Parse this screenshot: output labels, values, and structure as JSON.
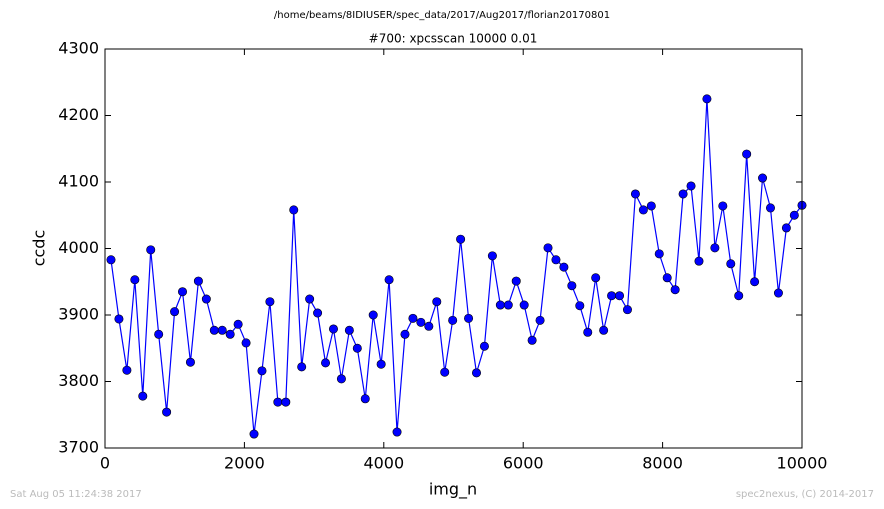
{
  "chart_data": {
    "type": "line",
    "suptitle": "/home/beams/8IDIUSER/spec_data/2017/Aug2017/florian20170801",
    "title": "#700: xpcsscan 10000 0.01",
    "x_label": "img_n",
    "y_label": "ccdc",
    "footer_left": "Sat Aug 05 11:24:38 2017",
    "footer_right": "spec2nexus, (C) 2014-2017",
    "x": [
      86,
      200,
      314,
      428,
      542,
      656,
      770,
      884,
      998,
      1112,
      1226,
      1340,
      1454,
      1568,
      1682,
      1796,
      1910,
      2024,
      2138,
      2252,
      2366,
      2480,
      2594,
      2708,
      2822,
      2936,
      3050,
      3164,
      3278,
      3392,
      3506,
      3620,
      3734,
      3848,
      3962,
      4076,
      4190,
      4304,
      4418,
      4532,
      4646,
      4760,
      4874,
      4988,
      5102,
      5216,
      5330,
      5444,
      5558,
      5672,
      5786,
      5900,
      6014,
      6128,
      6242,
      6356,
      6470,
      6584,
      6698,
      6812,
      6926,
      7040,
      7154,
      7268,
      7382,
      7496,
      7610,
      7724,
      7838,
      7952,
      8066,
      8180,
      8294,
      8408,
      8522,
      8636,
      8750,
      8864,
      8978,
      9092,
      9206,
      9320,
      9434,
      9548,
      9662,
      9776,
      9890,
      10000
    ],
    "series": [
      {
        "name": "ccdc",
        "color": "#0000ff",
        "values": [
          3983,
          3894,
          3817,
          3953,
          3778,
          3998,
          3871,
          3754,
          3905,
          3935,
          3829,
          3951,
          3924,
          3877,
          3877,
          3871,
          3886,
          3858,
          3721,
          3816,
          3920,
          3769,
          3769,
          4058,
          3822,
          3924,
          3903,
          3828,
          3879,
          3804,
          3877,
          3850,
          3774,
          3900,
          3826,
          3953,
          3724,
          3871,
          3895,
          3889,
          3883,
          3920,
          3814,
          3892,
          4014,
          3895,
          3813,
          3853,
          3989,
          3915,
          3915,
          3951,
          3915,
          3862,
          3892,
          4001,
          3983,
          3972,
          3944,
          3914,
          3874,
          3956,
          3877,
          3929,
          3929,
          3908,
          4082,
          4058,
          4064,
          3992,
          3956,
          3938,
          4082,
          4094,
          3981,
          4225,
          4001,
          4064,
          3977,
          3929,
          4142,
          3950,
          4106,
          4061,
          3933,
          4031,
          4050,
          4065
        ]
      }
    ],
    "xlim": [
      0,
      10000
    ],
    "xticks": [
      0,
      2000,
      4000,
      6000,
      8000,
      10000
    ],
    "ylim": [
      3700,
      4300
    ],
    "yticks": [
      3700,
      3800,
      3900,
      4000,
      4100,
      4200,
      4300
    ],
    "grid": false
  }
}
